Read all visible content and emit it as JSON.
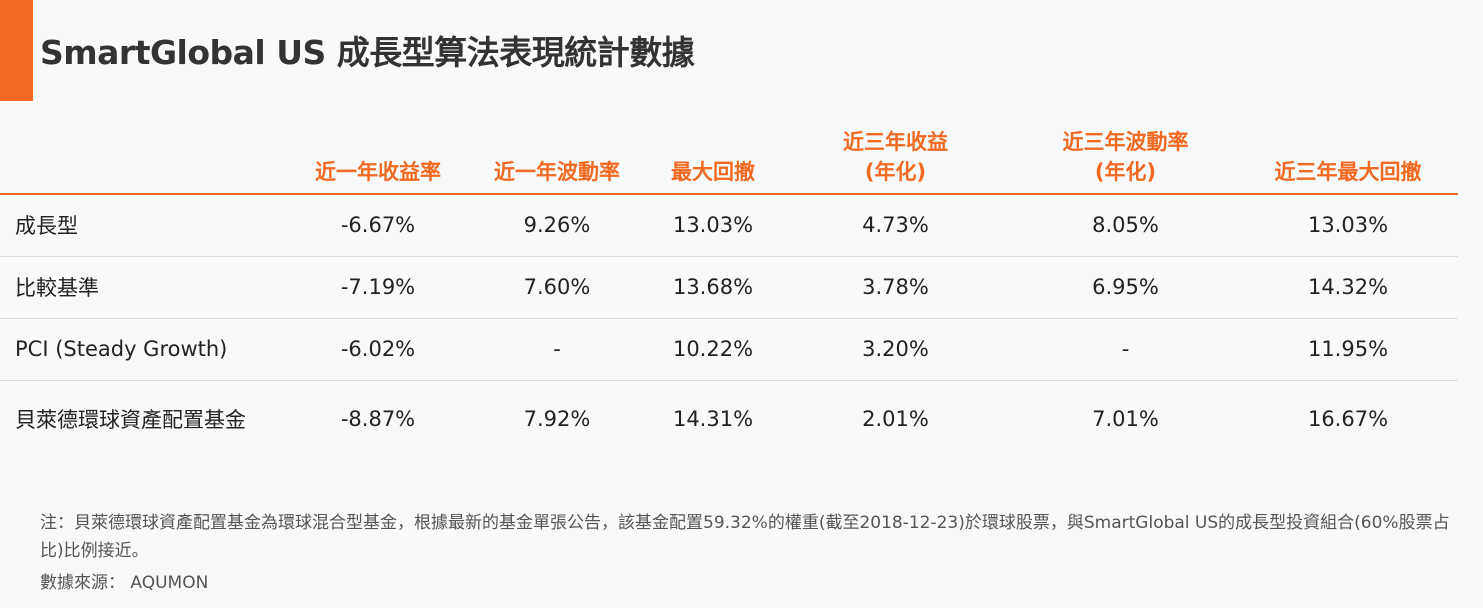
{
  "title": "SmartGlobal US 成長型算法表現統計數據",
  "colors": {
    "accent": "#f26a21"
  },
  "table": {
    "headers": [
      {
        "line1": "",
        "line2": ""
      },
      {
        "line1": "",
        "line2": "近一年收益率"
      },
      {
        "line1": "",
        "line2": "近一年波動率"
      },
      {
        "line1": "",
        "line2": "最大回撤"
      },
      {
        "line1": "近三年收益",
        "line2": "(年化)"
      },
      {
        "line1": "近三年波動率",
        "line2": "(年化)"
      },
      {
        "line1": "",
        "line2": "近三年最大回撤"
      }
    ],
    "rows": [
      {
        "label": "成長型",
        "values": [
          "-6.67%",
          "9.26%",
          "13.03%",
          "4.73%",
          "8.05%",
          "13.03%"
        ]
      },
      {
        "label": "比較基準",
        "values": [
          "-7.19%",
          "7.60%",
          "13.68%",
          "3.78%",
          "6.95%",
          "14.32%"
        ]
      },
      {
        "label": "PCI (Steady Growth)",
        "values": [
          "-6.02%",
          "-",
          "10.22%",
          "3.20%",
          "-",
          "11.95%"
        ]
      },
      {
        "label": "貝萊德環球資產配置基金",
        "values": [
          "-8.87%",
          "7.92%",
          "14.31%",
          "2.01%",
          "7.01%",
          "16.67%"
        ]
      }
    ]
  },
  "note": "注：貝萊德環球資產配置基金為環球混合型基金，根據最新的基金單張公告，該基金配置59.32%的權重(截至2018-12-23)於環球股票，與SmartGlobal US的成長型投資組合(60%股票占比)比例接近。",
  "source": "數據來源： AQUMON"
}
